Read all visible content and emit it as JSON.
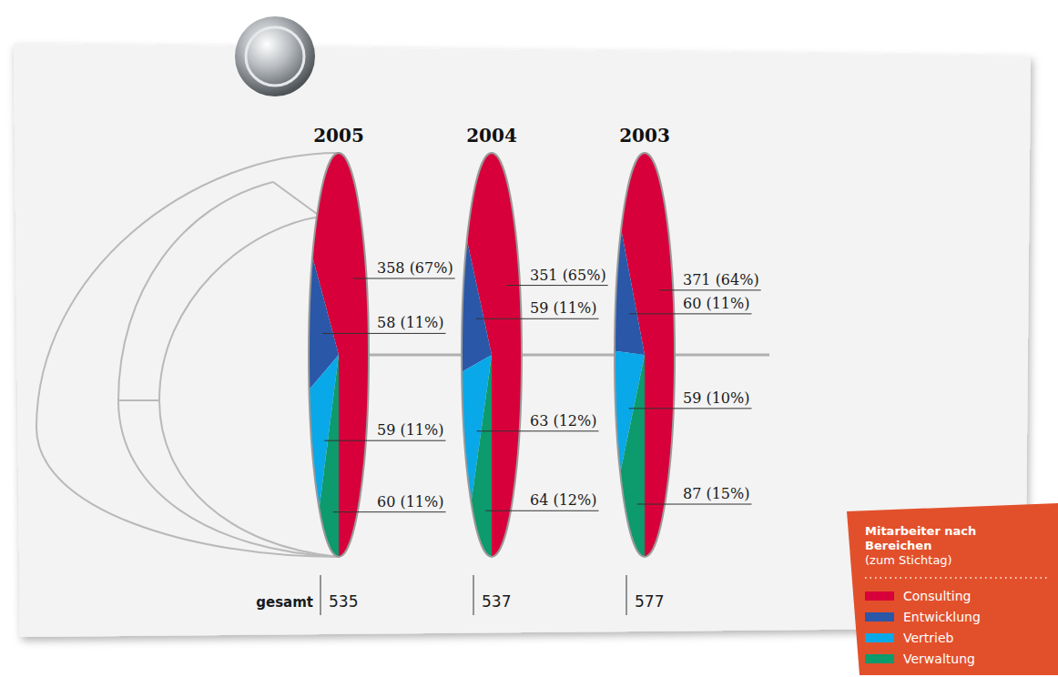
{
  "chart_data": {
    "type": "pie",
    "title": "Mitarbeiter nach Bereichen",
    "subtitle": "(zum Stichtag)",
    "categories": [
      "Consulting",
      "Entwicklung",
      "Vertrieb",
      "Verwaltung"
    ],
    "colors": [
      "#d8003a",
      "#2a57a8",
      "#09a8e8",
      "#0d9a6c"
    ],
    "series": [
      {
        "name": "2005",
        "values": [
          358,
          58,
          59,
          60
        ],
        "value_labels": [
          "358 (67%)",
          "58 (11%)",
          "59 (11%)",
          "60 (11%)"
        ],
        "total": 535
      },
      {
        "name": "2004",
        "values": [
          351,
          59,
          63,
          64
        ],
        "value_labels": [
          "351 (65%)",
          "59 (11%)",
          "63 (12%)",
          "64 (12%)"
        ],
        "total": 537
      },
      {
        "name": "2003",
        "values": [
          371,
          60,
          59,
          87
        ],
        "value_labels": [
          "371 (64%)",
          "60 (11%)",
          "59 (10%)",
          "87 (15%)"
        ],
        "total": 577
      }
    ],
    "total_label": "gesamt",
    "data_labels": true,
    "legend": "bottom-right"
  }
}
